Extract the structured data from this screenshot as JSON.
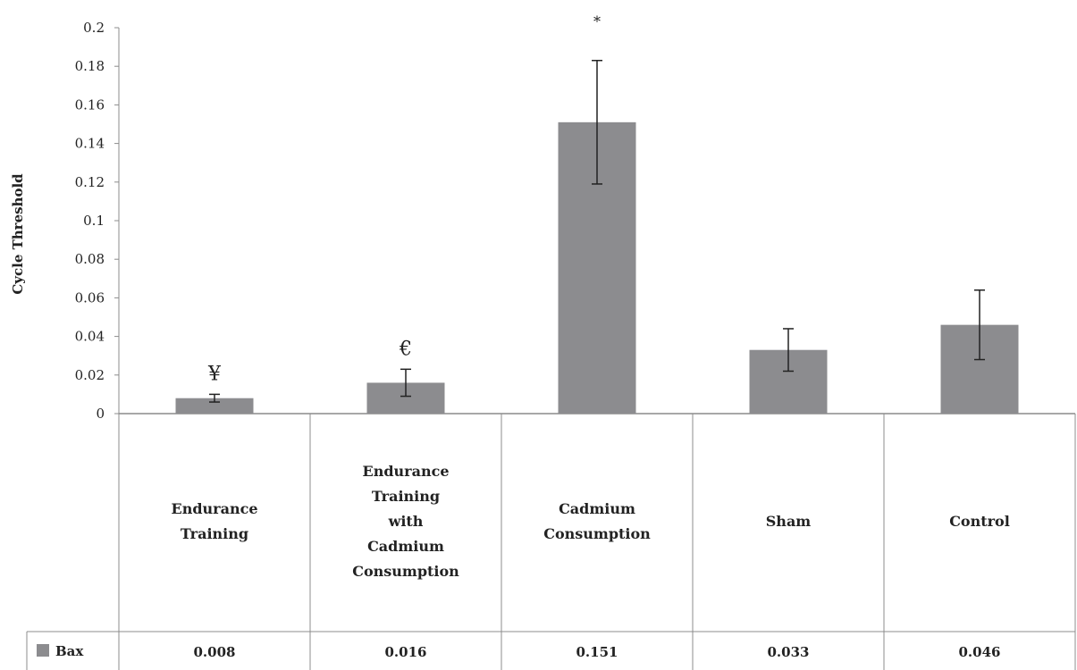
{
  "chart_data": {
    "type": "bar",
    "title": "",
    "xlabel": "",
    "ylabel": "Cycle Threshold",
    "ylim": [
      0,
      0.2
    ],
    "y_ticks": [
      "0",
      "0.02",
      "0.04",
      "0.06",
      "0.08",
      "0.1",
      "0.12",
      "0.14",
      "0.16",
      "0.18",
      "0.2"
    ],
    "grid": false,
    "legend_placement": "data-table-left",
    "categories": [
      [
        "Endurance",
        "Training"
      ],
      [
        "Endurance",
        "Training",
        "with",
        "Cadmium",
        "Consumption"
      ],
      [
        "Cadmium",
        "Consumption"
      ],
      [
        "Sham"
      ],
      [
        "Control"
      ]
    ],
    "series": [
      {
        "name": "Bax",
        "color": "#8c8c8f",
        "values": [
          0.008,
          0.016,
          0.151,
          0.033,
          0.046
        ],
        "value_labels": [
          "0.008",
          "0.016",
          "0.151",
          "0.033",
          "0.046"
        ],
        "error_low": [
          0.006,
          0.009,
          0.119,
          0.022,
          0.028
        ],
        "error_high": [
          0.01,
          0.023,
          0.183,
          0.044,
          0.064
        ]
      }
    ],
    "annotations": [
      "¥",
      "€",
      "*",
      "",
      ""
    ]
  }
}
